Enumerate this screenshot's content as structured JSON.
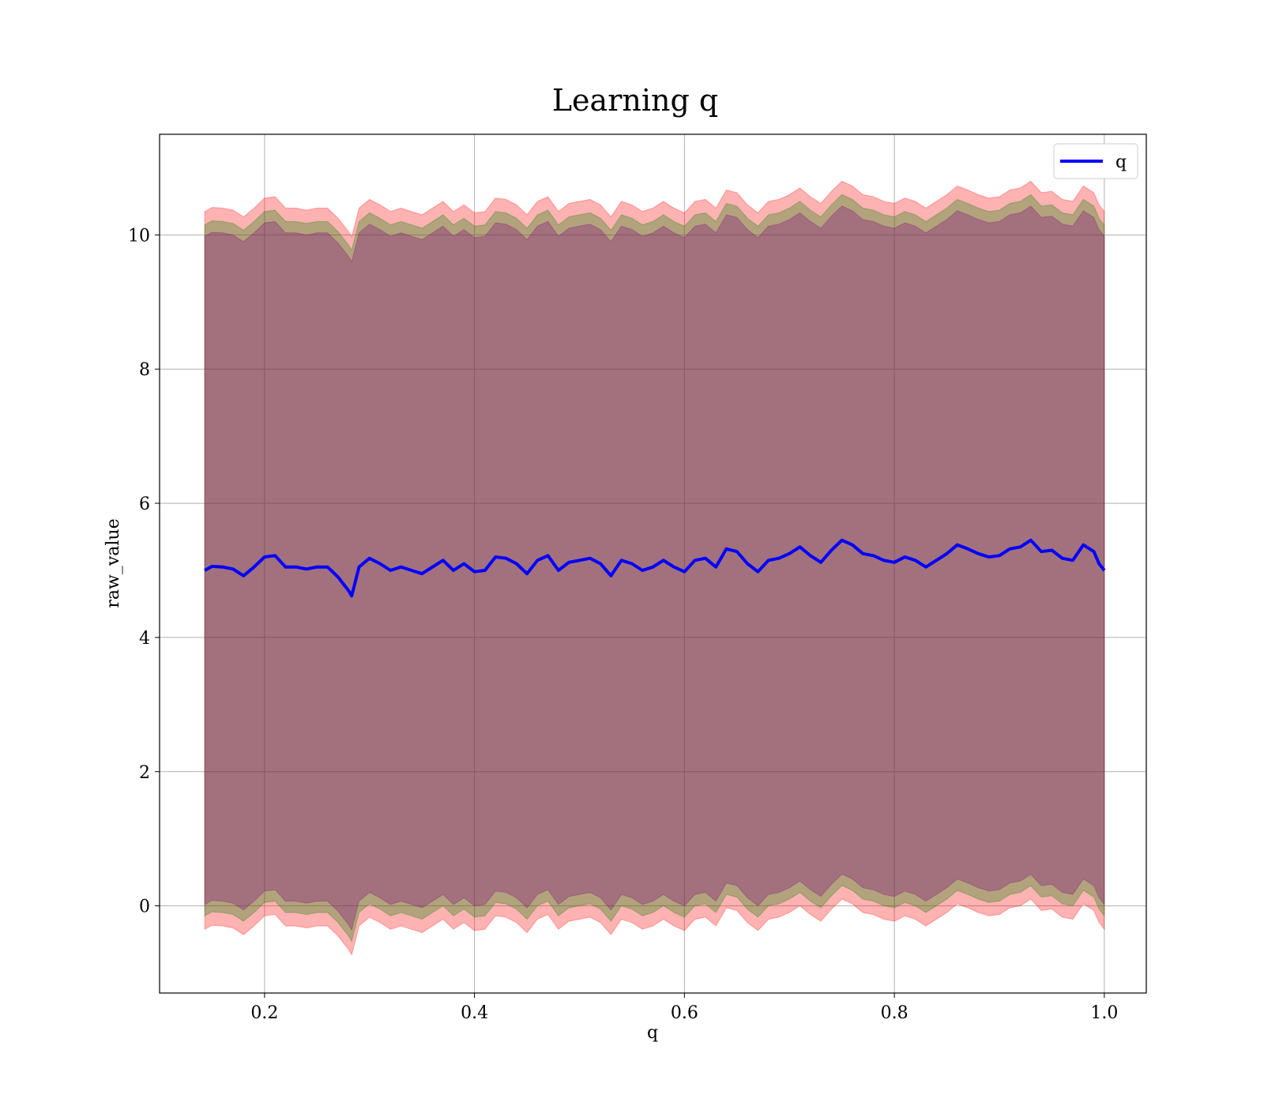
{
  "chart_data": {
    "type": "line",
    "title": "Learning q",
    "xlabel": "q",
    "ylabel": "raw_value",
    "xlim": [
      0.1,
      1.04
    ],
    "ylim": [
      -1.3,
      11.5
    ],
    "xticks": [
      0.2,
      0.4,
      0.6,
      0.8,
      1.0
    ],
    "xtick_labels": [
      "0.2",
      "0.4",
      "0.6",
      "0.8",
      "1.0"
    ],
    "yticks": [
      0,
      2,
      4,
      6,
      8,
      10
    ],
    "ytick_labels": [
      "0",
      "2",
      "4",
      "6",
      "8",
      "10"
    ],
    "grid": true,
    "legend": {
      "position": "top-right",
      "entries": [
        "q"
      ]
    },
    "series": [
      {
        "name": "q",
        "color": "#0000ff",
        "x": [
          0.143,
          0.15,
          0.16,
          0.17,
          0.18,
          0.19,
          0.2,
          0.21,
          0.22,
          0.23,
          0.24,
          0.25,
          0.26,
          0.27,
          0.28,
          0.283,
          0.29,
          0.3,
          0.31,
          0.32,
          0.33,
          0.34,
          0.35,
          0.36,
          0.37,
          0.38,
          0.39,
          0.4,
          0.41,
          0.42,
          0.43,
          0.44,
          0.45,
          0.46,
          0.47,
          0.48,
          0.49,
          0.5,
          0.51,
          0.52,
          0.53,
          0.54,
          0.55,
          0.56,
          0.57,
          0.58,
          0.59,
          0.6,
          0.61,
          0.62,
          0.63,
          0.64,
          0.65,
          0.66,
          0.67,
          0.68,
          0.69,
          0.7,
          0.71,
          0.72,
          0.73,
          0.74,
          0.75,
          0.76,
          0.77,
          0.78,
          0.79,
          0.8,
          0.81,
          0.82,
          0.83,
          0.84,
          0.85,
          0.86,
          0.87,
          0.88,
          0.89,
          0.9,
          0.91,
          0.92,
          0.93,
          0.94,
          0.95,
          0.96,
          0.97,
          0.98,
          0.99,
          0.995,
          1.0
        ],
        "y": [
          5.0,
          5.06,
          5.05,
          5.02,
          4.92,
          5.05,
          5.2,
          5.22,
          5.05,
          5.05,
          5.02,
          5.05,
          5.05,
          4.9,
          4.7,
          4.62,
          5.05,
          5.18,
          5.1,
          5.0,
          5.05,
          5.0,
          4.95,
          5.05,
          5.15,
          5.0,
          5.1,
          4.98,
          5.0,
          5.2,
          5.18,
          5.1,
          4.95,
          5.15,
          5.22,
          5.0,
          5.12,
          5.15,
          5.18,
          5.1,
          4.92,
          5.15,
          5.1,
          5.0,
          5.05,
          5.15,
          5.05,
          4.98,
          5.15,
          5.18,
          5.05,
          5.32,
          5.28,
          5.1,
          4.98,
          5.15,
          5.18,
          5.25,
          5.35,
          5.22,
          5.12,
          5.3,
          5.45,
          5.38,
          5.25,
          5.22,
          5.15,
          5.12,
          5.2,
          5.15,
          5.05,
          5.15,
          5.25,
          5.38,
          5.32,
          5.25,
          5.2,
          5.22,
          5.32,
          5.35,
          5.45,
          5.28,
          5.3,
          5.18,
          5.15,
          5.38,
          5.28,
          5.1,
          5.0
        ]
      }
    ],
    "bands": [
      {
        "color": "#ff0000",
        "opacity": 0.3,
        "lower_offset": -5.35,
        "upper_offset": 5.35
      },
      {
        "color": "#008000",
        "opacity": 0.3,
        "lower_offset": -5.15,
        "upper_offset": 5.15
      },
      {
        "color": "#800080",
        "opacity": 0.3,
        "lower_offset": -4.98,
        "upper_offset": 4.98
      }
    ]
  }
}
